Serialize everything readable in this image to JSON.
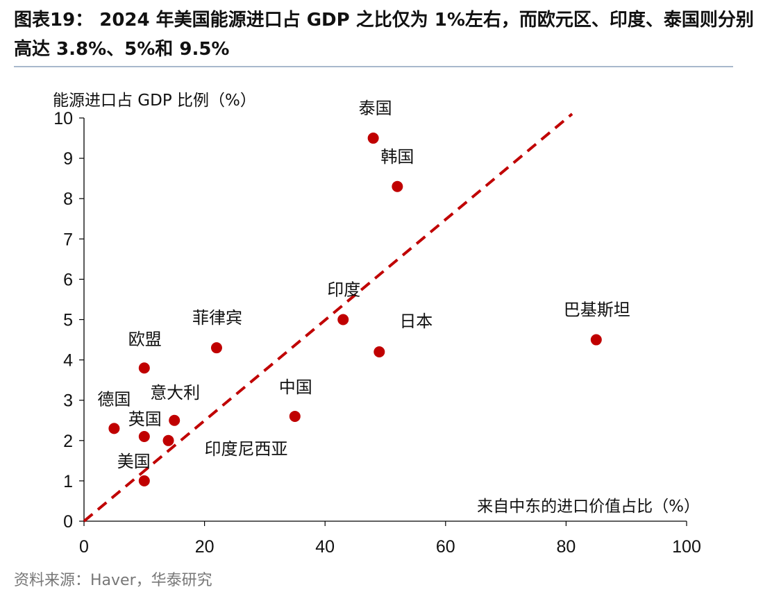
{
  "figure": {
    "title": "图表19： 2024 年美国能源进口占 GDP 之比仅为 1%左右，而欧元区、印度、泰国则分别高达 3.8%、5%和 9.5%",
    "source": "资料来源：Haver，华泰研究"
  },
  "colors": {
    "point": "#c00000",
    "trendline": "#c00000",
    "axis": "#000000",
    "text": "#111111"
  },
  "chart_data": {
    "type": "scatter",
    "xlabel": "来自中东的进口价值占比（%）",
    "ylabel": "能源进口占 GDP 比例（%）",
    "xlim": [
      0,
      100
    ],
    "ylim": [
      0,
      10
    ],
    "xticks": [
      0,
      20,
      40,
      60,
      80,
      100
    ],
    "yticks": [
      0,
      1,
      2,
      3,
      4,
      5,
      6,
      7,
      8,
      9,
      10
    ],
    "grid": false,
    "points": [
      {
        "label": "泰国",
        "x": 48,
        "y": 9.5
      },
      {
        "label": "韩国",
        "x": 52,
        "y": 8.3
      },
      {
        "label": "巴基斯坦",
        "x": 85,
        "y": 4.5
      },
      {
        "label": "印度",
        "x": 43,
        "y": 5.0
      },
      {
        "label": "日本",
        "x": 49,
        "y": 4.2
      },
      {
        "label": "菲律宾",
        "x": 22,
        "y": 4.3
      },
      {
        "label": "欧盟",
        "x": 10,
        "y": 3.8
      },
      {
        "label": "中国",
        "x": 35,
        "y": 2.6
      },
      {
        "label": "意大利",
        "x": 15,
        "y": 2.5
      },
      {
        "label": "德国",
        "x": 5,
        "y": 2.3
      },
      {
        "label": "英国",
        "x": 10,
        "y": 2.1
      },
      {
        "label": "印度尼西亚",
        "x": 14,
        "y": 2.0
      },
      {
        "label": "美国",
        "x": 10,
        "y": 1.0
      }
    ],
    "trendline": {
      "style": "dashed",
      "from": [
        0,
        0
      ],
      "to": [
        81,
        10.1
      ]
    }
  }
}
